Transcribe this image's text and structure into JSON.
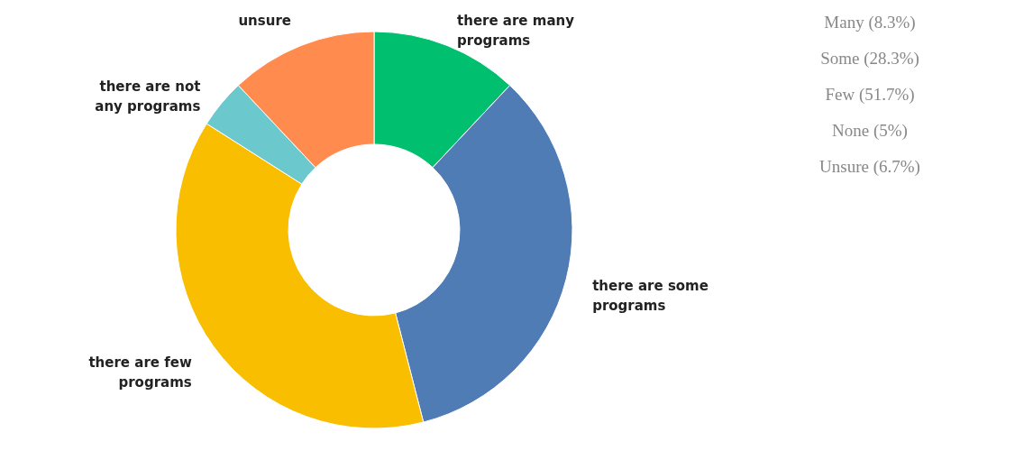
{
  "chart_data": {
    "type": "donut",
    "categories": [
      "there are many programs",
      "there are some programs",
      "there are few programs",
      "there are not any programs",
      "unsure"
    ],
    "values": [
      12,
      34,
      38,
      4,
      12
    ],
    "colors": [
      "#00bf6f",
      "#507cb6",
      "#f9be00",
      "#6bc8cd",
      "#ff8b4f"
    ],
    "legend": false,
    "annotations": [
      "Many (8.3%)",
      "Some (28.3%)",
      "Few (51.7%)",
      "None (5%)",
      "Unsure (6.7%)"
    ]
  }
}
